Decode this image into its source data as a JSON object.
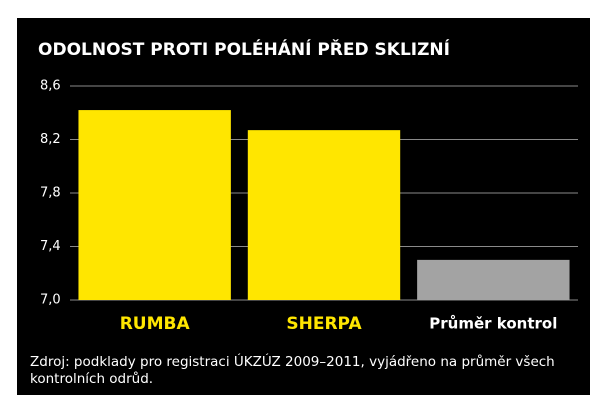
{
  "chart_data": {
    "type": "bar",
    "title": "ODOLNOST PROTI POLÉHÁNÍ PŘED SKLIZNÍ",
    "categories": [
      "RUMBA",
      "SHERPA",
      "Průměr kontrol"
    ],
    "values": [
      8.42,
      8.27,
      7.3
    ],
    "colors": [
      "#ffe600",
      "#ffe600",
      "#a3a3a3"
    ],
    "label_colors": [
      "#ffe600",
      "#ffe600",
      "#ffffff"
    ],
    "ylim": [
      7.0,
      8.6
    ],
    "yticks": [
      {
        "value": 7.0,
        "label": "7,0"
      },
      {
        "value": 7.4,
        "label": "7,4"
      },
      {
        "value": 7.8,
        "label": "7,8"
      },
      {
        "value": 8.2,
        "label": "8,2"
      },
      {
        "value": 8.6,
        "label": "8,6"
      }
    ],
    "grid": true,
    "source": "Zdroj: podklady pro registraci ÚKZÚZ 2009–2011, vyjádřeno na průměr všech kontrolních odrůd."
  }
}
